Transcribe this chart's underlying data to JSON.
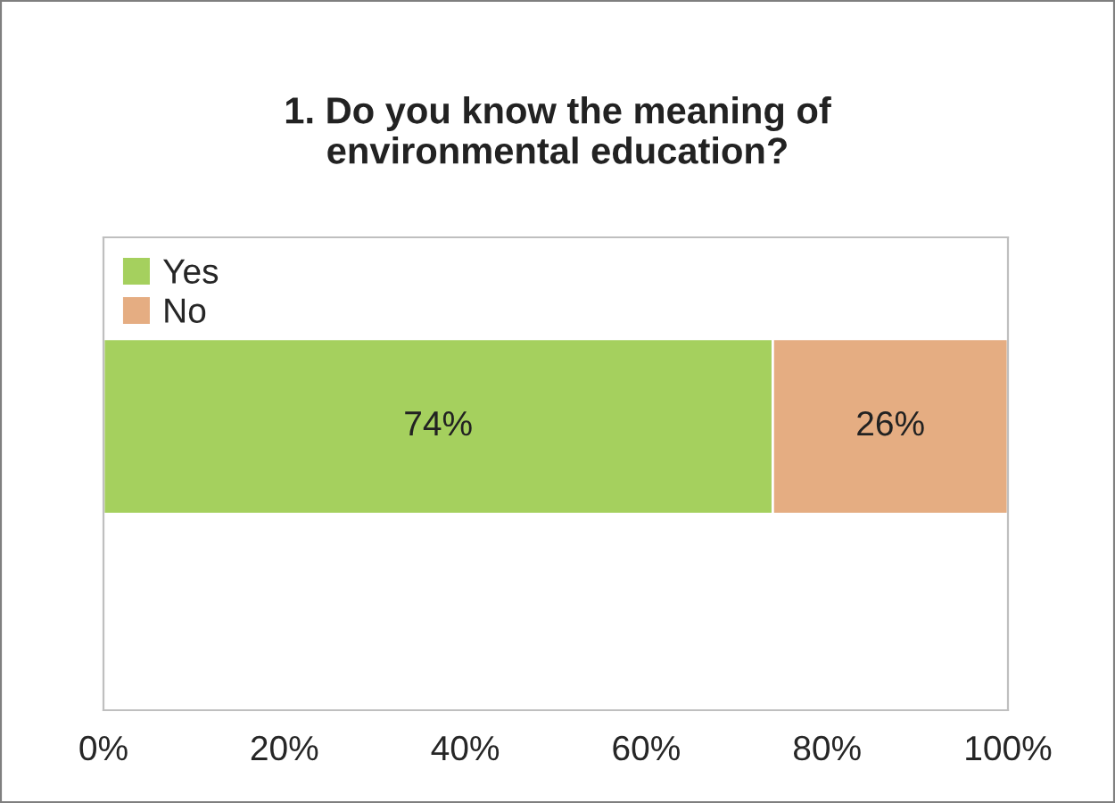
{
  "chart_data": {
    "type": "bar",
    "orientation": "horizontal",
    "stacked": true,
    "title": "1. Do you know the meaning of\nenvironmental education?",
    "categories": [
      null
    ],
    "series": [
      {
        "name": "Yes",
        "color": "#a5d05e",
        "values": [
          74
        ],
        "value_labels": [
          "74%"
        ]
      },
      {
        "name": "No",
        "color": "#e5ad82",
        "values": [
          26
        ],
        "value_labels": [
          "26%"
        ]
      }
    ],
    "xlim": [
      0,
      100
    ],
    "xticks": [
      {
        "value": 0,
        "label": "0%"
      },
      {
        "value": 20,
        "label": "20%"
      },
      {
        "value": 40,
        "label": "40%"
      },
      {
        "value": 60,
        "label": "60%"
      },
      {
        "value": 80,
        "label": "80%"
      },
      {
        "value": 100,
        "label": "100%"
      }
    ],
    "tick_labels": "x",
    "grid": false,
    "legend": "top left"
  }
}
